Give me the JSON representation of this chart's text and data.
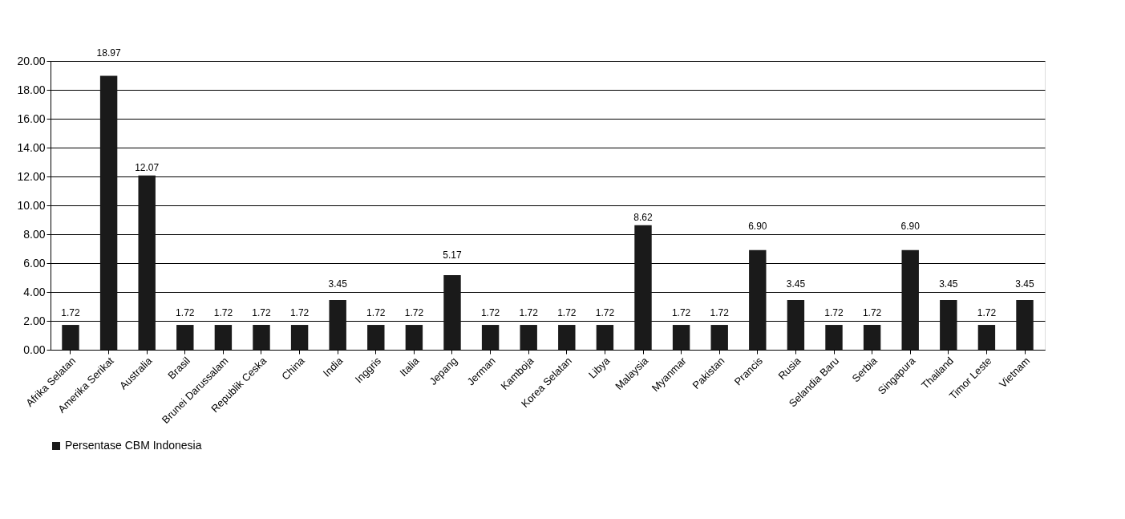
{
  "chart_data": {
    "type": "bar",
    "categories": [
      "Afrika Selatan",
      "Amerika Serikat",
      "Australia",
      "Brasil",
      "Brunei Darussalam",
      "Republik Ceska",
      "China",
      "India",
      "Inggris",
      "Italia",
      "Jepang",
      "Jerman",
      "Kamboja",
      "Korea Selatan",
      "Libya",
      "Malaysia",
      "Myanmar",
      "Pakistan",
      "Prancis",
      "Rusia",
      "Selandia Baru",
      "Serbia",
      "Singapura",
      "Thailand",
      "Timor Leste",
      "Vietnam"
    ],
    "series": [
      {
        "name": "Persentase CBM Indonesia",
        "color": "#1a1a1a",
        "values": [
          1.72,
          18.97,
          12.07,
          1.72,
          1.72,
          1.72,
          1.72,
          3.45,
          1.72,
          1.72,
          5.17,
          1.72,
          1.72,
          1.72,
          1.72,
          8.62,
          1.72,
          1.72,
          6.9,
          3.45,
          1.72,
          1.72,
          6.9,
          3.45,
          1.72,
          3.45
        ],
        "value_labels": [
          "1.72",
          "18.97",
          "12.07",
          "1.72",
          "1.72",
          "1.72",
          "1.72",
          "3.45",
          "1.72",
          "1.72",
          "5.17",
          "1.72",
          "1.72",
          "1.72",
          "1.72",
          "8.62",
          "1.72",
          "1.72",
          "6.90",
          "3.45",
          "1.72",
          "1.72",
          "6.90",
          "3.45",
          "1.72",
          "3.45"
        ]
      }
    ],
    "ylim": [
      0,
      20
    ],
    "yticks": [
      {
        "value": 0,
        "label": "0.00"
      },
      {
        "value": 2,
        "label": "2.00"
      },
      {
        "value": 4,
        "label": "4.00"
      },
      {
        "value": 6,
        "label": "6.00"
      },
      {
        "value": 8,
        "label": "8.00"
      },
      {
        "value": 10,
        "label": "10.00"
      },
      {
        "value": 12,
        "label": "12.00"
      },
      {
        "value": 14,
        "label": "14.00"
      },
      {
        "value": 16,
        "label": "16.00"
      },
      {
        "value": 18,
        "label": "18.00"
      },
      {
        "value": 20,
        "label": "20.00"
      }
    ],
    "grid": "y",
    "legend": "bottom"
  }
}
